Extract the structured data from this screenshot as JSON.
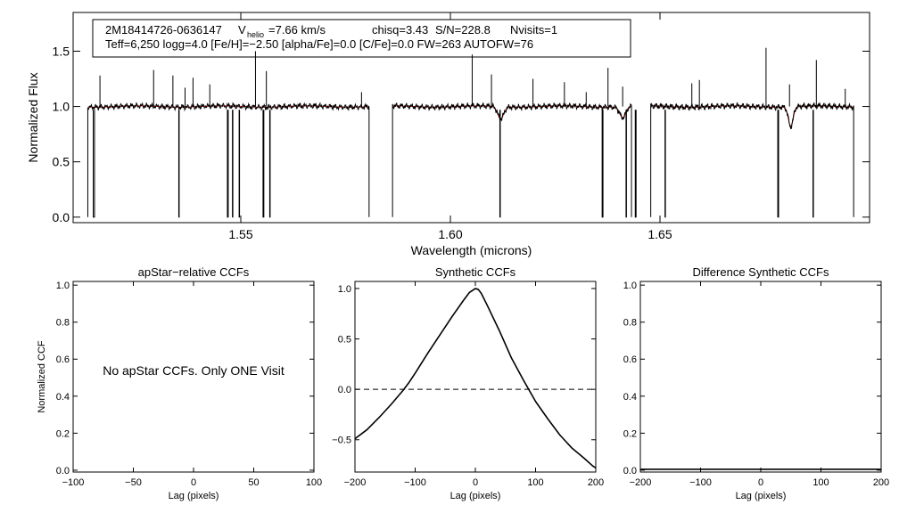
{
  "colors": {
    "axis": "#000000",
    "spectrum": "#000000",
    "model": "#cc2222",
    "zero_line": "#000000"
  },
  "header": {
    "star_id": "2M18414726-0636147",
    "vhelio_label": "V",
    "vhelio_subscript": "helio",
    "vhelio_value": "=7.66 km/s",
    "chisq": "chisq=3.43",
    "snr": "S/N=228.8",
    "nvisits": "Nvisits=1",
    "line2": "Teff=6,250 logg=4.0 [Fe/H]=−2.50 [alpha/Fe]=0.0 [C/Fe]=0.0 FW=263 AUTOFW=76"
  },
  "chart_data": [
    {
      "id": "spectrum",
      "type": "line",
      "title": "",
      "xlabel": "Wavelength (microns)",
      "ylabel": "Normalized Flux",
      "xlim": [
        1.51,
        1.7
      ],
      "ylim": [
        -0.05,
        1.85
      ],
      "xticks": [
        1.55,
        1.6,
        1.65
      ],
      "xtick_labels": [
        "1.55",
        "1.60",
        "1.65"
      ],
      "yticks": [
        0.0,
        0.5,
        1.0,
        1.5
      ],
      "ytick_labels": [
        "0.0",
        "0.5",
        "1.0",
        "1.5"
      ],
      "segments": [
        [
          1.5135,
          1.5806
        ],
        [
          1.5862,
          1.6432
        ],
        [
          1.6478,
          1.6962
        ]
      ],
      "continuum": 1.0,
      "emission_spikes": [
        [
          1.5164,
          1.28
        ],
        [
          1.5292,
          1.33
        ],
        [
          1.5338,
          1.28
        ],
        [
          1.5367,
          1.17
        ],
        [
          1.5386,
          1.26
        ],
        [
          1.5426,
          1.2
        ],
        [
          1.5535,
          1.5
        ],
        [
          1.5561,
          1.32
        ],
        [
          1.5788,
          1.13
        ],
        [
          1.6052,
          1.47
        ],
        [
          1.6098,
          1.29
        ],
        [
          1.6197,
          1.25
        ],
        [
          1.6272,
          1.22
        ],
        [
          1.6324,
          1.13
        ],
        [
          1.6376,
          1.35
        ],
        [
          1.6411,
          1.18
        ],
        [
          1.6576,
          1.21
        ],
        [
          1.6594,
          1.24
        ],
        [
          1.6753,
          1.53
        ],
        [
          1.6809,
          1.2
        ],
        [
          1.6873,
          1.42
        ],
        [
          1.6942,
          1.16
        ]
      ],
      "dropouts": [
        [
          1.5148,
          1.5151
        ],
        [
          1.5352,
          1.5353
        ],
        [
          1.5468,
          1.547
        ],
        [
          1.548,
          1.5481
        ],
        [
          1.5496,
          1.5497
        ],
        [
          1.5553,
          1.5555
        ],
        [
          1.5569,
          1.557
        ],
        [
          1.6118,
          1.6119
        ],
        [
          1.6362,
          1.6364
        ],
        [
          1.6419,
          1.642
        ],
        [
          1.6441,
          1.6443
        ],
        [
          1.6512,
          1.6513
        ],
        [
          1.6781,
          1.6783
        ],
        [
          1.6865,
          1.6866
        ]
      ],
      "absorption_lines": [
        [
          1.612,
          0.89,
          0.001
        ],
        [
          1.6411,
          0.9,
          0.001
        ],
        [
          1.6812,
          0.82,
          0.0008
        ]
      ]
    },
    {
      "id": "apstar_ccf",
      "type": "line",
      "title": "apStar−relative CCFs",
      "xlabel": "Lag (pixels)",
      "ylabel": "Normalized CCF",
      "xlim": [
        -100,
        100
      ],
      "ylim": [
        -0.01,
        1.02
      ],
      "xticks": [
        -100,
        -50,
        0,
        50,
        100
      ],
      "xtick_labels": [
        "−100",
        "−50",
        "0",
        "50",
        "100"
      ],
      "yticks": [
        0.0,
        0.2,
        0.4,
        0.6,
        0.8,
        1.0
      ],
      "ytick_labels": [
        "0.0",
        "0.2",
        "0.4",
        "0.6",
        "0.8",
        "1.0"
      ],
      "annotation": "No apStar CCFs.  Only ONE Visit",
      "series": []
    },
    {
      "id": "synthetic_ccf",
      "type": "line",
      "title": "Synthetic CCFs",
      "xlabel": "Lag (pixels)",
      "ylabel": "",
      "xlim": [
        -200,
        200
      ],
      "ylim": [
        -0.82,
        1.07
      ],
      "xticks": [
        -200,
        -100,
        0,
        100,
        200
      ],
      "xtick_labels": [
        "−200",
        "−100",
        "0",
        "100",
        "200"
      ],
      "yticks": [
        -0.5,
        0.0,
        0.5,
        1.0
      ],
      "ytick_labels": [
        "−0.5",
        "0.0",
        "0.5",
        "1.0"
      ],
      "zero_line": 0.0,
      "series": [
        {
          "name": "synthetic CCF",
          "x": [
            -200,
            -180,
            -160,
            -140,
            -120,
            -110,
            -100,
            -80,
            -60,
            -40,
            -20,
            -10,
            0,
            5,
            10,
            20,
            40,
            60,
            80,
            100,
            120,
            140,
            160,
            180,
            195,
            200
          ],
          "y": [
            -0.49,
            -0.4,
            -0.28,
            -0.15,
            -0.01,
            0.07,
            0.16,
            0.35,
            0.53,
            0.71,
            0.88,
            0.96,
            1.0,
            0.99,
            0.95,
            0.83,
            0.58,
            0.31,
            0.09,
            -0.12,
            -0.29,
            -0.45,
            -0.58,
            -0.68,
            -0.76,
            -0.78
          ]
        }
      ]
    },
    {
      "id": "difference_ccf",
      "type": "line",
      "title": "Difference Synthetic CCFs",
      "xlabel": "Lag (pixels)",
      "ylabel": "",
      "xlim": [
        -200,
        200
      ],
      "ylim": [
        -0.01,
        1.02
      ],
      "xticks": [
        -200,
        -100,
        0,
        100,
        200
      ],
      "xtick_labels": [
        "−200",
        "−100",
        "0",
        "100",
        "200"
      ],
      "yticks": [
        0.0,
        0.2,
        0.4,
        0.6,
        0.8,
        1.0
      ],
      "ytick_labels": [
        "0.0",
        "0.2",
        "0.4",
        "0.6",
        "0.8",
        "1.0"
      ],
      "series": [
        {
          "name": "difference",
          "x": [
            -200,
            200
          ],
          "y": [
            0.0,
            0.0
          ]
        }
      ]
    }
  ]
}
